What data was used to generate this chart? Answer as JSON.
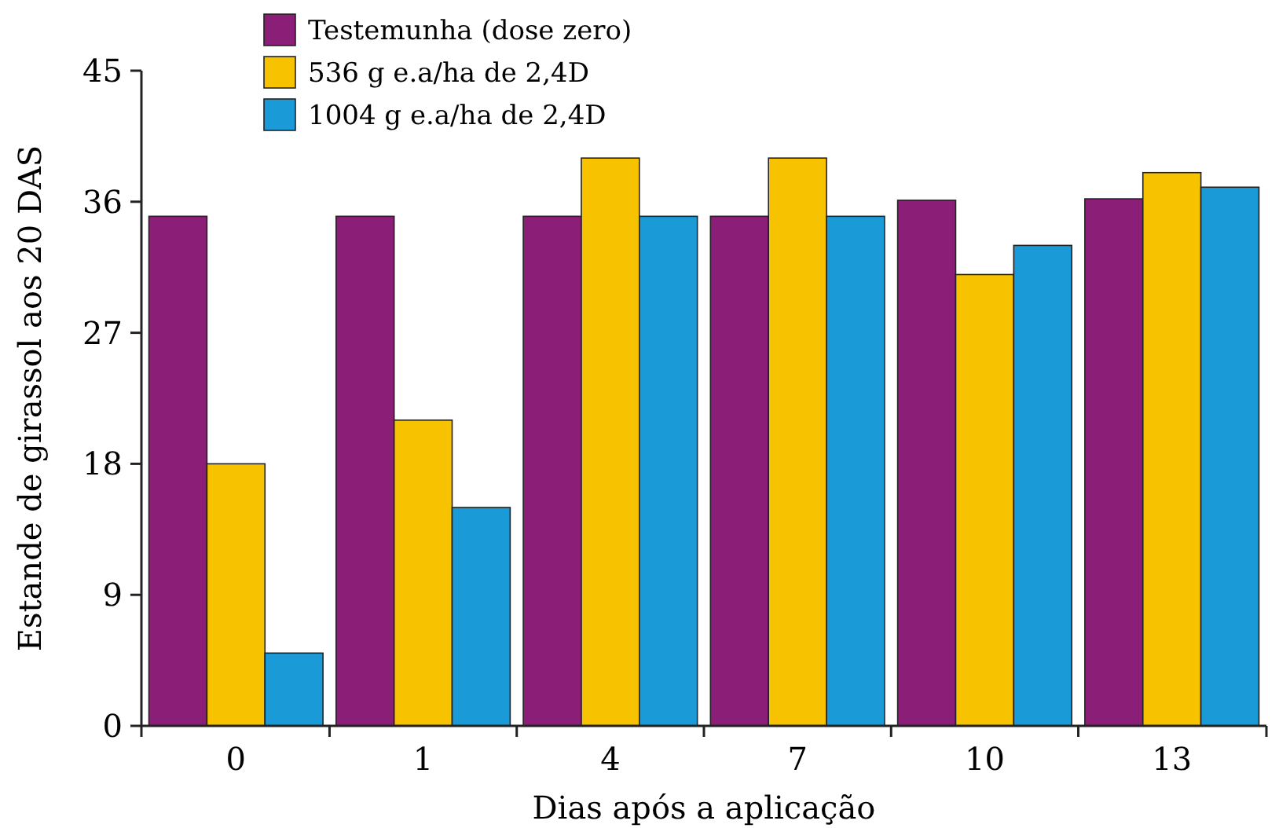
{
  "chart_data": {
    "type": "bar",
    "xlabel": "Dias após a aplicação",
    "ylabel": "Estande de girassol aos 20 DAS",
    "categories": [
      "0",
      "1",
      "4",
      "7",
      "10",
      "13"
    ],
    "series": [
      {
        "name": "Testemunha (dose zero)",
        "color": "#8b1f78",
        "values": [
          35,
          35,
          35,
          35,
          36.1,
          36.2
        ]
      },
      {
        "name": "536 g e.a/ha de 2,4D",
        "color": "#f7c200",
        "values": [
          18,
          21,
          39,
          39,
          31,
          38
        ]
      },
      {
        "name": "1004 g e.a/ha de 2,4D",
        "color": "#1a9ad6",
        "values": [
          5,
          15,
          35,
          35,
          33,
          37
        ]
      }
    ],
    "ylim": [
      0,
      45
    ],
    "yticks": [
      0,
      9,
      18,
      27,
      36,
      45
    ],
    "grid": false,
    "legend": "top"
  }
}
